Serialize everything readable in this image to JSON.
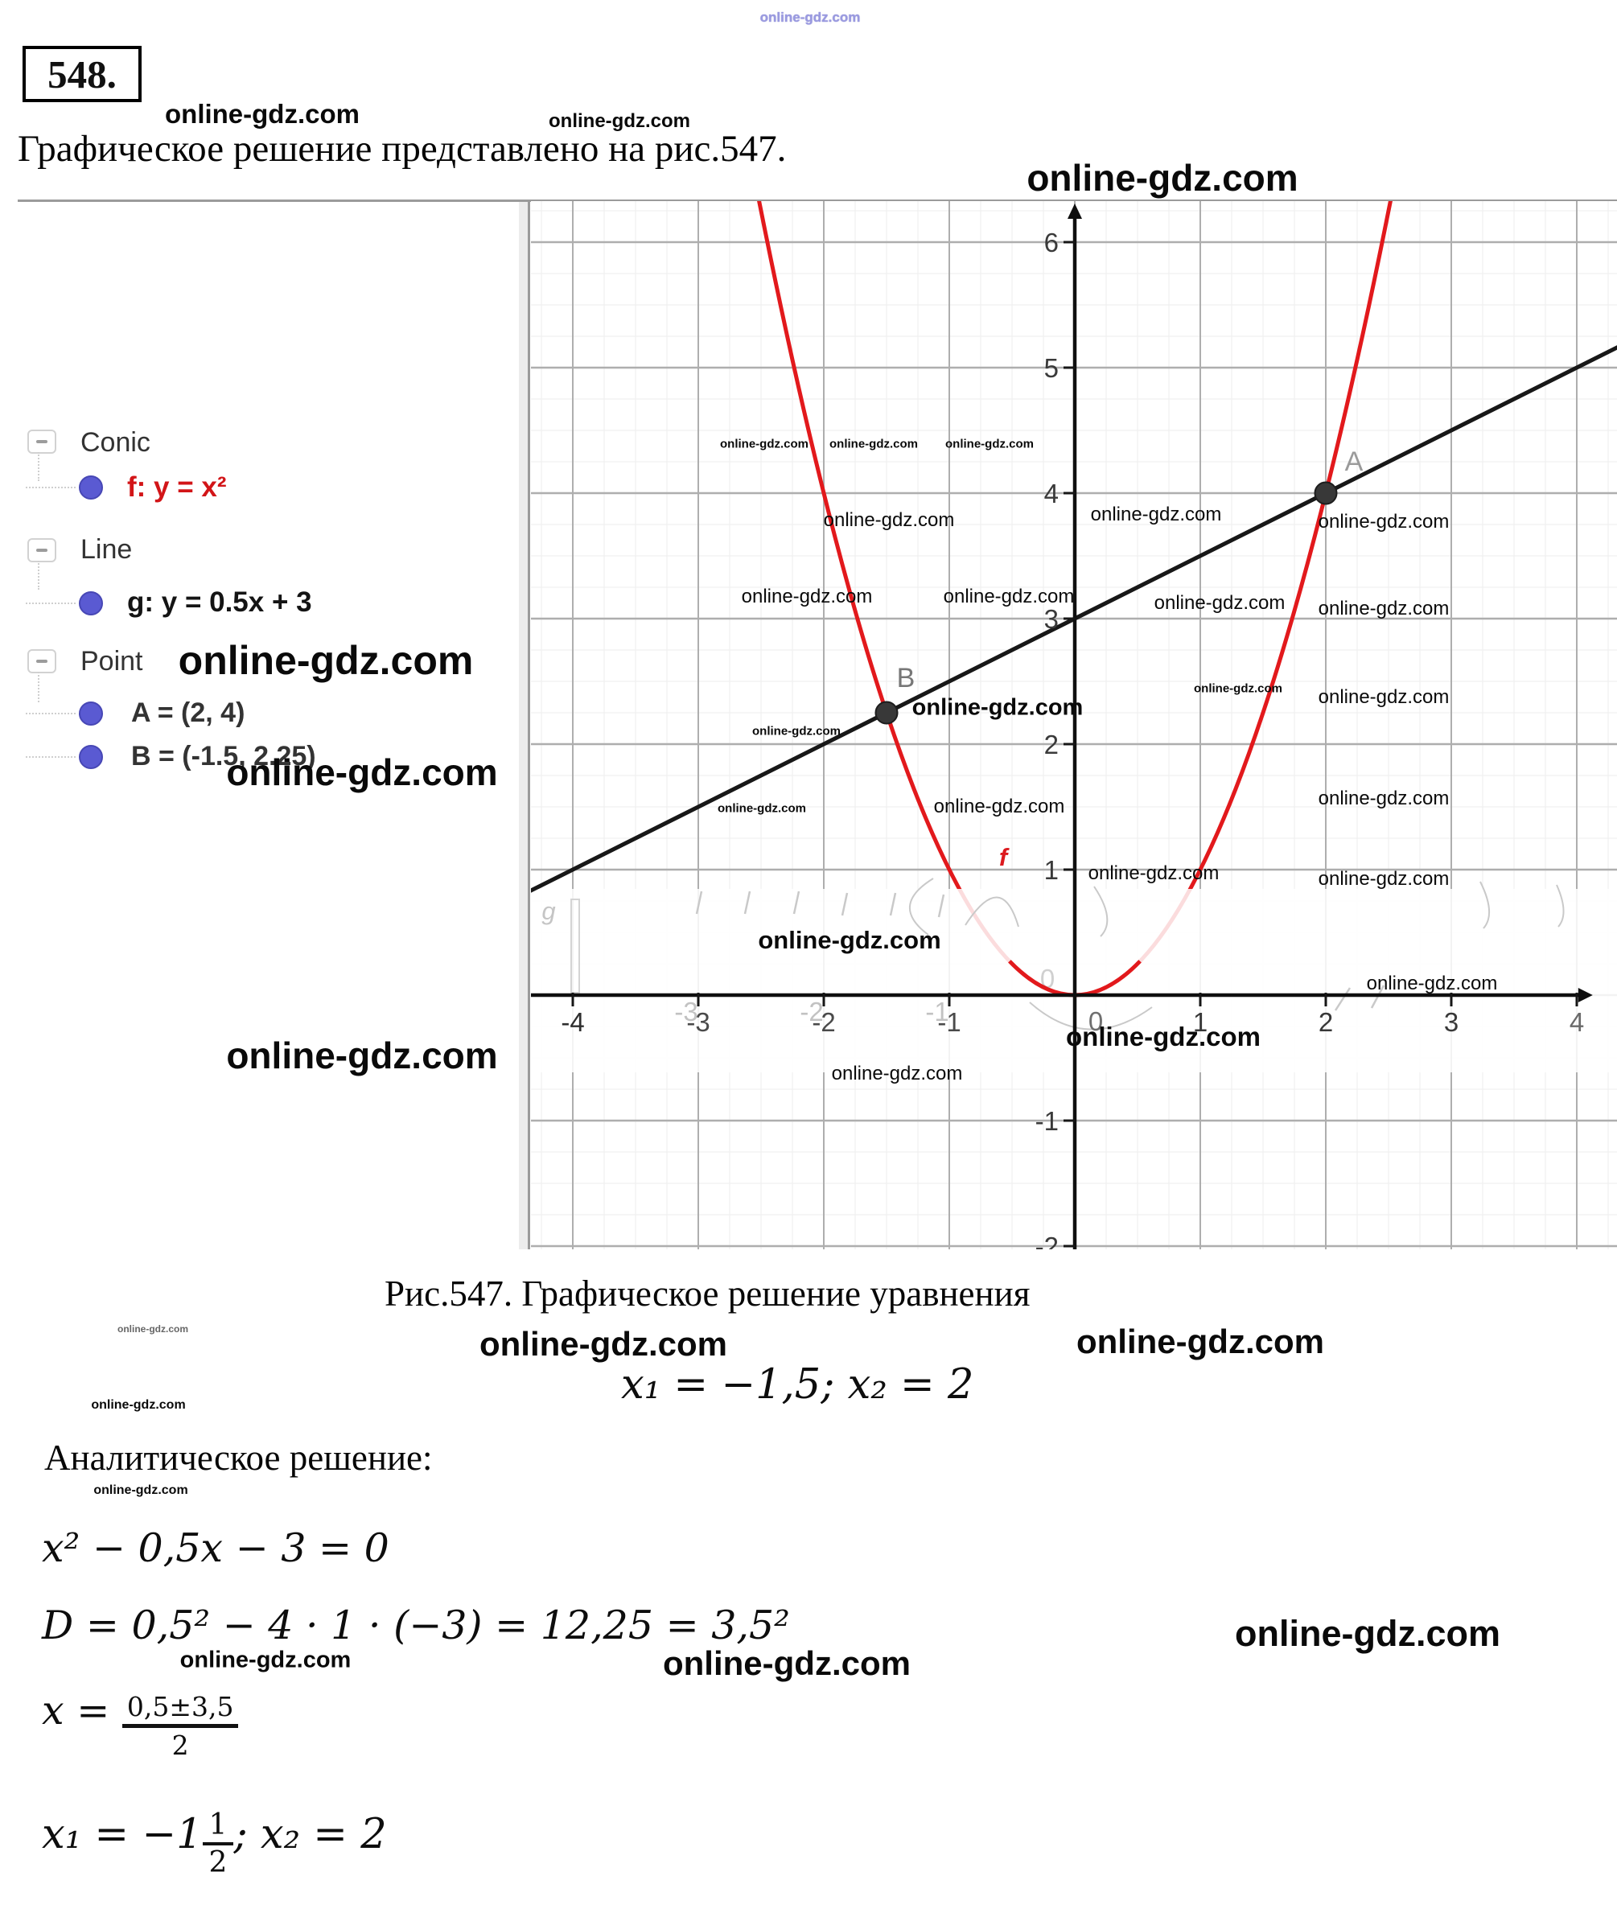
{
  "watermark": {
    "text": "online-gdz.com"
  },
  "header": {
    "problem_number": "548.",
    "heading": "Графическое решение представлено на рис.547."
  },
  "algebra_panel": {
    "sections": [
      {
        "label": "Conic",
        "items": [
          {
            "text": "f: y = x²"
          }
        ]
      },
      {
        "label": "Line",
        "items": [
          {
            "text": "g: y = 0.5x + 3"
          }
        ]
      },
      {
        "label": "Point",
        "items": [
          {
            "text": "A = (2, 4)"
          },
          {
            "text": "B = (-1.5, 2.25)"
          }
        ]
      }
    ]
  },
  "figure": {
    "caption": "Рис.547. Графическое решение уравнения",
    "roots_line": "x₁ = −1,5;  x₂ = 2"
  },
  "analytic": {
    "title": "Аналитическое решение:",
    "eq1": "x² − 0,5x − 3 = 0",
    "eq2": "D = 0,5² − 4 · 1 · (−3) = 12,25 = 3,5²",
    "eq3_lhs": "x =",
    "eq3_num": "0,5±3,5",
    "eq3_den": "2",
    "eq4_pre": "x₁ = −1",
    "eq4_num": "1",
    "eq4_den": "2",
    "eq4_post": ";  x₂ = 2"
  },
  "chart_data": {
    "type": "line",
    "title": "",
    "functions": [
      {
        "name": "f",
        "equation": "y = x²",
        "form": "parabola",
        "a": 1,
        "color": "#e2191c"
      },
      {
        "name": "g",
        "equation": "y = 0.5x + 3",
        "form": "linear",
        "slope": 0.5,
        "intercept": 3,
        "color": "#181818"
      }
    ],
    "points": [
      {
        "name": "A",
        "x": 2,
        "y": 4
      },
      {
        "name": "B",
        "x": -1.5,
        "y": 2.25
      }
    ],
    "x_ticks": [
      -4,
      -3,
      -2,
      -1,
      0,
      1,
      2,
      3,
      4
    ],
    "y_ticks": [
      -2,
      -1,
      0,
      1,
      2,
      3,
      4,
      5,
      6
    ],
    "xlim": [
      -4.37,
      4.33
    ],
    "ylim": [
      -2.03,
      6.33
    ],
    "grid": {
      "minor_step": 0.25,
      "major_step": 1,
      "minor_color": "#ededed",
      "major_color": "#aeaeae"
    }
  }
}
